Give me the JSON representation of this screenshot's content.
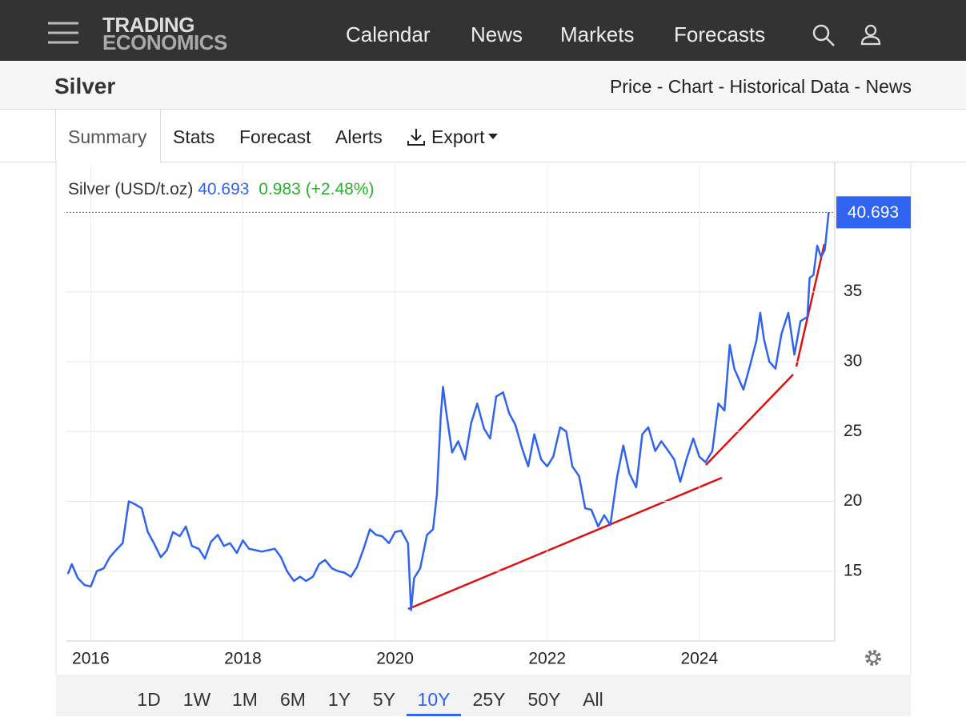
{
  "nav": {
    "logo_top": "TRADING",
    "logo_bottom": "ECONOMICS",
    "items": [
      "Calendar",
      "News",
      "Markets",
      "Forecasts"
    ]
  },
  "header": {
    "title": "Silver",
    "links": "Price - Chart - Historical Data - News"
  },
  "tabs": [
    "Summary",
    "Stats",
    "Forecast",
    "Alerts",
    "Export"
  ],
  "quote": {
    "name": "Silver (USD/t.oz)",
    "price": 40.693,
    "change": 0.983,
    "change_pct": "(+2.48%)"
  },
  "chart_data": {
    "type": "line",
    "x": [
      2015.7,
      2015.75,
      2015.83,
      2015.92,
      2016.0,
      2016.08,
      2016.17,
      2016.25,
      2016.33,
      2016.42,
      2016.5,
      2016.58,
      2016.67,
      2016.75,
      2016.83,
      2016.92,
      2017.0,
      2017.08,
      2017.17,
      2017.25,
      2017.33,
      2017.42,
      2017.5,
      2017.58,
      2017.67,
      2017.75,
      2017.83,
      2017.92,
      2018.0,
      2018.08,
      2018.17,
      2018.25,
      2018.33,
      2018.42,
      2018.5,
      2018.58,
      2018.67,
      2018.75,
      2018.83,
      2018.92,
      2019.0,
      2019.08,
      2019.17,
      2019.25,
      2019.33,
      2019.42,
      2019.5,
      2019.58,
      2019.67,
      2019.75,
      2019.83,
      2019.92,
      2020.0,
      2020.08,
      2020.17,
      2020.21,
      2020.25,
      2020.33,
      2020.42,
      2020.5,
      2020.55,
      2020.6,
      2020.63,
      2020.67,
      2020.75,
      2020.83,
      2020.92,
      2021.0,
      2021.08,
      2021.17,
      2021.25,
      2021.33,
      2021.42,
      2021.5,
      2021.58,
      2021.67,
      2021.75,
      2021.83,
      2021.92,
      2022.0,
      2022.08,
      2022.17,
      2022.25,
      2022.33,
      2022.42,
      2022.5,
      2022.58,
      2022.67,
      2022.75,
      2022.83,
      2022.92,
      2023.0,
      2023.08,
      2023.17,
      2023.25,
      2023.33,
      2023.42,
      2023.5,
      2023.58,
      2023.67,
      2023.75,
      2023.83,
      2023.92,
      2024.0,
      2024.08,
      2024.17,
      2024.25,
      2024.33,
      2024.4,
      2024.46,
      2024.5,
      2024.58,
      2024.67,
      2024.75,
      2024.8,
      2024.85,
      2024.92,
      2025.0,
      2025.08,
      2025.17,
      2025.25,
      2025.33,
      2025.42,
      2025.45,
      2025.5,
      2025.55,
      2025.6,
      2025.65,
      2025.7
    ],
    "series": [
      {
        "name": "Silver",
        "color": "#2f63f0",
        "values": [
          14.8,
          15.5,
          14.5,
          14.0,
          13.9,
          15.0,
          15.2,
          16.0,
          16.5,
          17.0,
          20.0,
          19.8,
          19.5,
          17.8,
          17.0,
          16.0,
          16.5,
          17.8,
          17.5,
          18.2,
          16.8,
          16.6,
          15.9,
          17.1,
          17.6,
          16.8,
          17.0,
          16.3,
          17.2,
          16.6,
          16.5,
          16.4,
          16.5,
          16.6,
          16.0,
          15.0,
          14.3,
          14.6,
          14.3,
          14.6,
          15.5,
          15.8,
          15.2,
          15.0,
          14.9,
          14.6,
          15.3,
          16.5,
          18.0,
          17.6,
          17.5,
          17.0,
          17.8,
          17.9,
          17.0,
          12.2,
          14.5,
          15.2,
          17.6,
          18.0,
          20.5,
          26.0,
          28.2,
          26.5,
          23.5,
          24.3,
          23.0,
          25.6,
          27.0,
          25.2,
          24.5,
          27.5,
          27.8,
          26.3,
          25.5,
          23.8,
          22.5,
          24.8,
          23.0,
          22.5,
          23.2,
          25.3,
          25.0,
          22.5,
          21.8,
          19.5,
          19.4,
          18.2,
          19.0,
          18.3,
          21.8,
          24.0,
          22.0,
          21.0,
          24.8,
          25.3,
          23.6,
          24.3,
          23.7,
          23.0,
          21.4,
          23.0,
          24.5,
          23.2,
          22.8,
          23.6,
          27.0,
          26.5,
          31.2,
          29.5,
          29.0,
          28.0,
          29.8,
          31.5,
          33.5,
          31.6,
          30.0,
          29.5,
          32.0,
          33.5,
          30.5,
          32.9,
          33.2,
          36.0,
          36.2,
          38.3,
          37.5,
          38.0,
          40.693
        ]
      }
    ],
    "xlim": [
      2015.68,
      2025.78
    ],
    "xticks": [
      2016,
      2018,
      2020,
      2022,
      2024
    ],
    "ylim": [
      10,
      44.15
    ],
    "yticks": [
      15,
      20,
      25,
      30,
      35
    ],
    "grid": true
  },
  "ranges": [
    "1D",
    "1W",
    "1M",
    "6M",
    "1Y",
    "5Y",
    "10Y",
    "25Y",
    "50Y",
    "All"
  ],
  "active_range": "10Y"
}
